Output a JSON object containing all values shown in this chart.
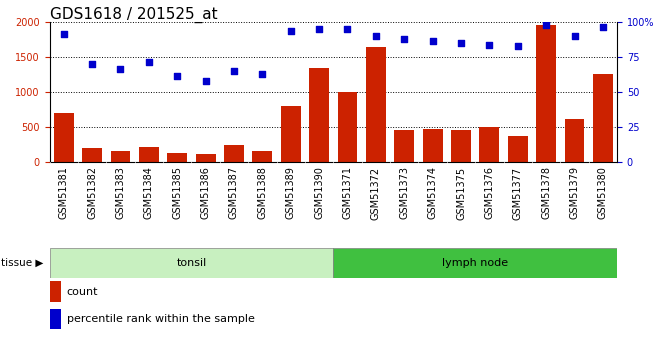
{
  "title": "GDS1618 / 201525_at",
  "categories": [
    "GSM51381",
    "GSM51382",
    "GSM51383",
    "GSM51384",
    "GSM51385",
    "GSM51386",
    "GSM51387",
    "GSM51388",
    "GSM51389",
    "GSM51390",
    "GSM51371",
    "GSM51372",
    "GSM51373",
    "GSM51374",
    "GSM51375",
    "GSM51376",
    "GSM51377",
    "GSM51378",
    "GSM51379",
    "GSM51380"
  ],
  "counts": [
    700,
    200,
    165,
    215,
    135,
    110,
    245,
    165,
    800,
    1350,
    1000,
    1650,
    460,
    480,
    460,
    510,
    370,
    1970,
    620,
    1260
  ],
  "percentile": [
    92,
    70,
    67,
    72,
    62,
    58,
    65,
    63,
    94,
    95,
    95,
    90,
    88,
    87,
    85,
    84,
    83,
    98,
    90,
    97
  ],
  "tissue_groups": [
    {
      "label": "tonsil",
      "start": 0,
      "end": 10,
      "color": "#c8f0c0"
    },
    {
      "label": "lymph node",
      "start": 10,
      "end": 20,
      "color": "#40c040"
    }
  ],
  "bar_color": "#CC2200",
  "dot_color": "#0000CC",
  "ylim_left": [
    0,
    2000
  ],
  "ylim_right": [
    0,
    100
  ],
  "yticks_left": [
    0,
    500,
    1000,
    1500,
    2000
  ],
  "yticks_right": [
    0,
    25,
    50,
    75,
    100
  ],
  "ytick_labels_right": [
    "0",
    "25",
    "50",
    "75",
    "100%"
  ],
  "grid_color": "#000000",
  "title_fontsize": 11,
  "tick_fontsize": 7,
  "label_fontsize": 8,
  "legend_count_label": "count",
  "legend_pct_label": "percentile rank within the sample",
  "tissue_label": "tissue",
  "bar_color_legend": "#CC2200",
  "dot_color_legend": "#0000CC",
  "xlabel_color": "#CC2200",
  "right_axis_color": "#0000CC",
  "xtick_bg": "#c8c8c8"
}
